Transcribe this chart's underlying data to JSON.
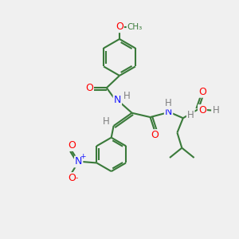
{
  "bg_color": "#f0f0f0",
  "bond_color": "#3a7a3a",
  "atom_colors": {
    "O": "#ff0000",
    "N": "#1a1aff",
    "H": "#808080",
    "C": "#3a7a3a"
  },
  "line_width": 1.5,
  "font_size_atoms": 8.5,
  "fig_size": [
    3.0,
    3.0
  ],
  "dpi": 100
}
